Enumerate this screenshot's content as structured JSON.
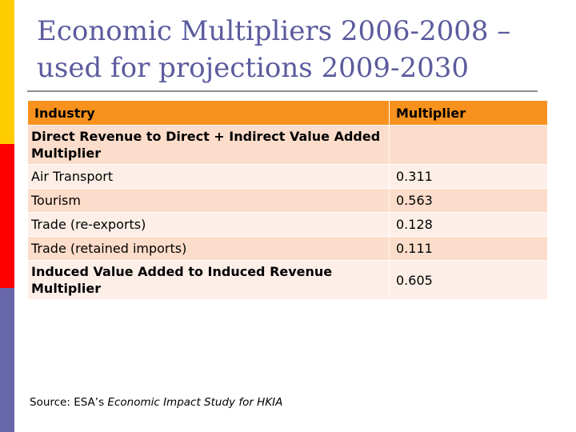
{
  "title": "Economic Multipliers 2006-2008 – used for projections 2009-2030",
  "table": {
    "headers": [
      "Industry",
      "Multiplier"
    ],
    "rows": [
      {
        "label": "Direct Revenue to Direct + Indirect Value Added Multiplier",
        "value": "",
        "bold": true
      },
      {
        "label": "Air Transport",
        "value": "0.311",
        "bold": false
      },
      {
        "label": "Tourism",
        "value": "0.563",
        "bold": false
      },
      {
        "label": "Trade (re-exports)",
        "value": "0.128",
        "bold": false
      },
      {
        "label": "Trade (retained imports)",
        "value": "0.111",
        "bold": false
      },
      {
        "label": "Induced Value Added to Induced Revenue Multiplier",
        "value": "0.605",
        "bold": true
      }
    ]
  },
  "source": {
    "prefix": "Source: ESA’s ",
    "study": "Economic Impact Study for HKIA"
  },
  "colors": {
    "header_fill": "#f7921e",
    "row_shade": "#fcdcca",
    "row_light": "#fdefe8",
    "title_color": "#5b5b9e",
    "bar_yellow": "#ffcc00",
    "bar_red": "#ff0000",
    "bar_blue": "#6666a8"
  }
}
